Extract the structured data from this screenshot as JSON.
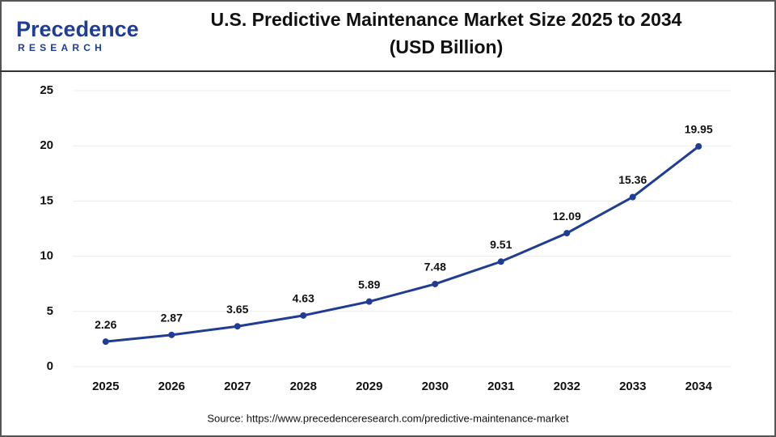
{
  "logo": {
    "name": "Precedence",
    "sub": "RESEARCH"
  },
  "chart_data": {
    "type": "line",
    "title": "U.S. Predictive Maintenance Market Size 2025 to 2034",
    "subtitle": "(USD Billion)",
    "categories": [
      "2025",
      "2026",
      "2027",
      "2028",
      "2029",
      "2030",
      "2031",
      "2032",
      "2033",
      "2034"
    ],
    "values": [
      2.26,
      2.87,
      3.65,
      4.63,
      5.89,
      7.48,
      9.51,
      12.09,
      15.36,
      19.95
    ],
    "color": "#1f3d94",
    "ylim": [
      0,
      25
    ],
    "yticks": [
      0,
      5,
      10,
      15,
      20,
      25
    ],
    "grid": true,
    "source": "Source: https://www.precedenceresearch.com/predictive-maintenance-market"
  }
}
